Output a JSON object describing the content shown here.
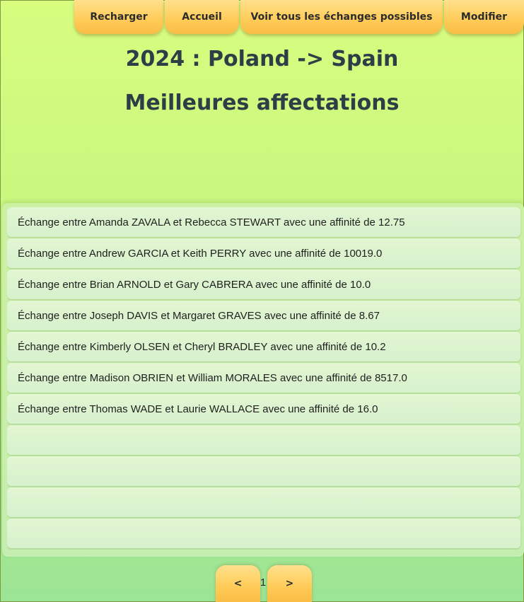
{
  "toolbar": {
    "reload_label": "Recharger",
    "home_label": "Accueil",
    "all_exchanges_label": "Voir tous les échanges possibles",
    "edit_label": "Modifier"
  },
  "header": {
    "title": "2024 : Poland -> Spain",
    "subtitle": "Meilleures affectations"
  },
  "list": {
    "items": [
      "Échange entre Amanda ZAVALA et Rebecca STEWART avec une affinité de 12.75",
      "Échange entre Andrew GARCIA et Keith PERRY avec une affinité de 10019.0",
      "Échange entre Brian ARNOLD et Gary CABRERA avec une affinité de 10.0",
      "Échange entre Joseph DAVIS et Margaret GRAVES avec une affinité de 8.67",
      "Échange entre Kimberly OLSEN et Cheryl BRADLEY avec une affinité de 10.2",
      "Échange entre Madison OBRIEN et William MORALES avec une affinité de 8517.0",
      "Échange entre Thomas WADE et Laurie WALLACE avec une affinité de 16.0",
      "",
      "",
      "",
      "",
      ""
    ]
  },
  "pager": {
    "prev_label": "<",
    "next_label": ">",
    "page_number": "1"
  }
}
